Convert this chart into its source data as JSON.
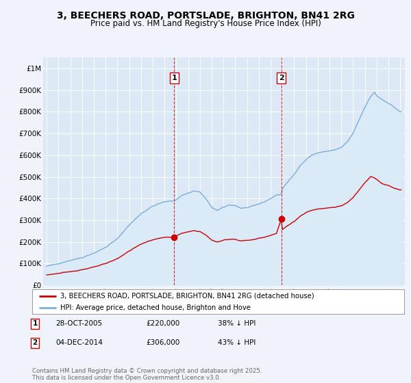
{
  "title": "3, BEECHERS ROAD, PORTSLADE, BRIGHTON, BN41 2RG",
  "subtitle": "Price paid vs. HM Land Registry's House Price Index (HPI)",
  "title_fontsize": 10,
  "subtitle_fontsize": 8.5,
  "background_color": "#f0f4fa",
  "plot_bg_color": "#dce8f5",
  "grid_color": "#ffffff",
  "ylim": [
    0,
    1050000
  ],
  "yticks": [
    0,
    100000,
    200000,
    300000,
    400000,
    500000,
    600000,
    700000,
    800000,
    900000,
    1000000
  ],
  "ytick_labels": [
    "£0",
    "£100K",
    "£200K",
    "£300K",
    "£400K",
    "£500K",
    "£600K",
    "£700K",
    "£800K",
    "£900K",
    "£1M"
  ],
  "red_line_color": "#cc0000",
  "blue_line_color": "#7aaddb",
  "blue_fill_color": "#daeaf7",
  "vline_color": "#cc0000",
  "transaction1_year": 2005.83,
  "transaction1_label": "1",
  "transaction1_price": 220000,
  "transaction2_year": 2014.92,
  "transaction2_label": "2",
  "transaction2_price": 306000,
  "legend_label_red": "3, BEECHERS ROAD, PORTSLADE, BRIGHTON, BN41 2RG (detached house)",
  "legend_label_blue": "HPI: Average price, detached house, Brighton and Hove",
  "annotation1_date": "28-OCT-2005",
  "annotation1_price": "£220,000",
  "annotation1_pct": "38% ↓ HPI",
  "annotation2_date": "04-DEC-2014",
  "annotation2_price": "£306,000",
  "annotation2_pct": "43% ↓ HPI",
  "footer_text": "Contains HM Land Registry data © Crown copyright and database right 2025.\nThis data is licensed under the Open Government Licence v3.0."
}
